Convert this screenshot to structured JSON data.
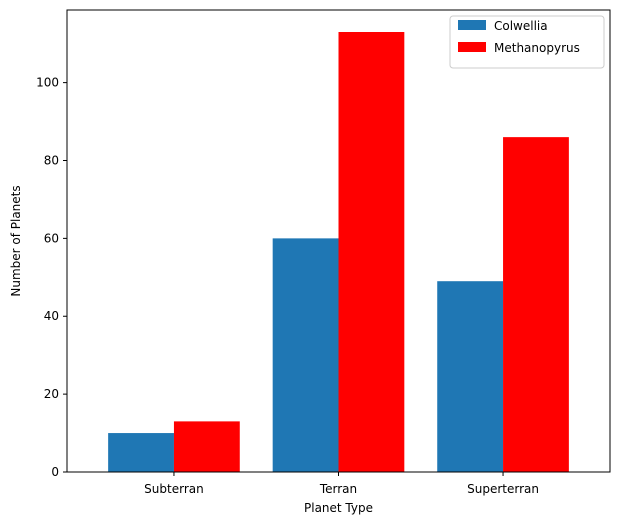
{
  "chart_data": {
    "type": "bar",
    "categories": [
      "Subterran",
      "Terran",
      "Superterran"
    ],
    "series": [
      {
        "name": "Colwellia",
        "values": [
          10,
          60,
          49
        ],
        "color": "#1f77b4"
      },
      {
        "name": "Methanopyrus",
        "values": [
          13,
          113,
          86
        ],
        "color": "#ff0000"
      }
    ],
    "xlabel": "Planet Type",
    "ylabel": "Number of Planets",
    "ylim": [
      0,
      118.65
    ],
    "yticks": [
      0,
      20,
      40,
      60,
      80,
      100
    ],
    "legend_position": "top-right",
    "grid": false
  }
}
